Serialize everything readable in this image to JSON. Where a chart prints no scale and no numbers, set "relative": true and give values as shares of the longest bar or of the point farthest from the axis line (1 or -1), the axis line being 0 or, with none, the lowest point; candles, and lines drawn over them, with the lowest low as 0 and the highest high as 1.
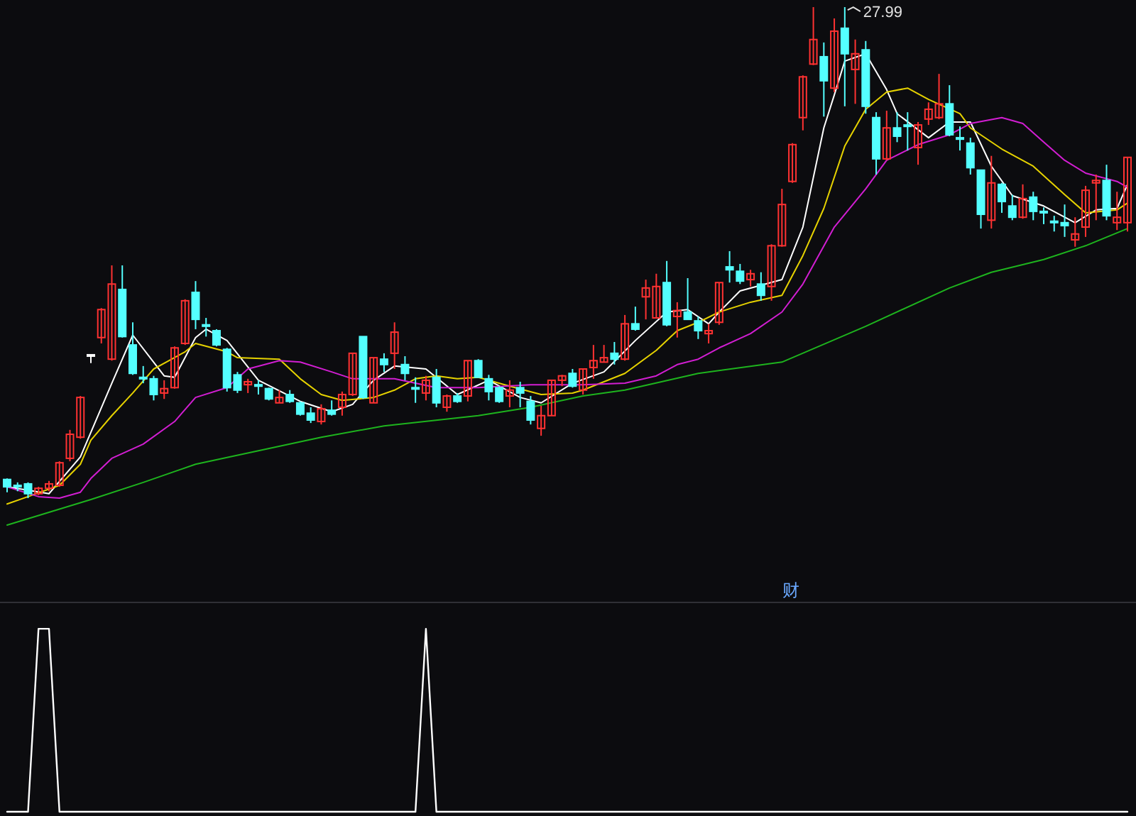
{
  "chart_data": [
    {
      "type": "candlestick",
      "relative": true,
      "categories": [
        null,
        null,
        null,
        null,
        null,
        null,
        null,
        null,
        null,
        null,
        null,
        null,
        null,
        null,
        null,
        null,
        null,
        null,
        null,
        null,
        null,
        null,
        null,
        null,
        null,
        null,
        null,
        null,
        null,
        null,
        null,
        null,
        null,
        null,
        null,
        null,
        null,
        null,
        null,
        null,
        null,
        null,
        null,
        null,
        null,
        null,
        null,
        null,
        null,
        null,
        null,
        null,
        null,
        null,
        null,
        null,
        null,
        null,
        null,
        null,
        null,
        null,
        null,
        null,
        null,
        null,
        null,
        null,
        null,
        null,
        null,
        null,
        null,
        null,
        null,
        null,
        null,
        null,
        null,
        null,
        null,
        null,
        null,
        null,
        null,
        null,
        null,
        null,
        null,
        null,
        null,
        null,
        null,
        null,
        null,
        null,
        null,
        null,
        null,
        null,
        null,
        null,
        null,
        null,
        null,
        null,
        null,
        null
      ],
      "ohlc": [
        [
          0.038,
          0.04,
          0.012,
          0.023
        ],
        [
          0.026,
          0.032,
          0.014,
          0.023
        ],
        [
          0.029,
          0.032,
          0,
          0.009
        ],
        [
          0.009,
          0.023,
          0.006,
          0.02
        ],
        [
          0.02,
          0.035,
          0.014,
          0.029
        ],
        [
          0.026,
          0.075,
          0.023,
          0.072
        ],
        [
          0.081,
          0.139,
          0.075,
          0.13
        ],
        [
          0.124,
          0.208,
          0.121,
          0.205
        ],
        [
          0.292,
          0.292,
          0.275,
          0.292
        ],
        [
          0.327,
          0.387,
          0.315,
          0.384
        ],
        [
          0.283,
          0.474,
          0.28,
          0.436
        ],
        [
          0.425,
          0.474,
          0.327,
          0.329
        ],
        [
          0.312,
          0.358,
          0.251,
          0.254
        ],
        [
          0.246,
          0.269,
          0.234,
          0.243
        ],
        [
          0.243,
          0.249,
          0.199,
          0.211
        ],
        [
          0.214,
          0.24,
          0.202,
          0.223
        ],
        [
          0.225,
          0.309,
          0.223,
          0.306
        ],
        [
          0.315,
          0.405,
          0.312,
          0.402
        ],
        [
          0.419,
          0.442,
          0.344,
          0.364
        ],
        [
          0.353,
          0.367,
          0.329,
          0.35
        ],
        [
          0.341,
          0.344,
          0.309,
          0.312
        ],
        [
          0.303,
          0.306,
          0.217,
          0.225
        ],
        [
          0.251,
          0.257,
          0.214,
          0.22
        ],
        [
          0.231,
          0.243,
          0.214,
          0.237
        ],
        [
          0.231,
          0.24,
          0.211,
          0.228
        ],
        [
          0.223,
          0.225,
          0.199,
          0.202
        ],
        [
          0.194,
          0.22,
          0.194,
          0.205
        ],
        [
          0.211,
          0.22,
          0.194,
          0.197
        ],
        [
          0.194,
          0.197,
          0.168,
          0.171
        ],
        [
          0.173,
          0.185,
          0.153,
          0.159
        ],
        [
          0.156,
          0.191,
          0.15,
          0.182
        ],
        [
          0.179,
          0.199,
          0.168,
          0.171
        ],
        [
          0.185,
          0.217,
          0.168,
          0.211
        ],
        [
          0.211,
          0.295,
          0.208,
          0.295
        ],
        [
          0.329,
          0.329,
          0.202,
          0.205
        ],
        [
          0.194,
          0.286,
          0.194,
          0.286
        ],
        [
          0.283,
          0.295,
          0.257,
          0.272
        ],
        [
          0.295,
          0.358,
          0.263,
          0.338
        ],
        [
          0.272,
          0.289,
          0.24,
          0.254
        ],
        [
          0.225,
          0.246,
          0.194,
          0.223
        ],
        [
          0.214,
          0.249,
          0.199,
          0.24
        ],
        [
          0.246,
          0.263,
          0.185,
          0.194
        ],
        [
          0.185,
          0.211,
          0.176,
          0.208
        ],
        [
          0.208,
          0.214,
          0.194,
          0.197
        ],
        [
          0.208,
          0.28,
          0.197,
          0.28
        ],
        [
          0.28,
          0.283,
          0.246,
          0.246
        ],
        [
          0.243,
          0.251,
          0.199,
          0.217
        ],
        [
          0.225,
          0.228,
          0.194,
          0.197
        ],
        [
          0.208,
          0.24,
          0.185,
          0.22
        ],
        [
          0.225,
          0.237,
          0.185,
          0.214
        ],
        [
          0.197,
          0.208,
          0.15,
          0.159
        ],
        [
          0.142,
          0.188,
          0.127,
          0.168
        ],
        [
          0.168,
          0.24,
          0.168,
          0.24
        ],
        [
          0.24,
          0.251,
          0.228,
          0.249
        ],
        [
          0.254,
          0.263,
          0.225,
          0.228
        ],
        [
          0.22,
          0.263,
          0.211,
          0.263
        ],
        [
          0.266,
          0.312,
          0.243,
          0.28
        ],
        [
          0.277,
          0.312,
          0.277,
          0.286
        ],
        [
          0.295,
          0.318,
          0.272,
          0.283
        ],
        [
          0.283,
          0.373,
          0.28,
          0.355
        ],
        [
          0.355,
          0.39,
          0.341,
          0.344
        ],
        [
          0.41,
          0.445,
          0.364,
          0.428
        ],
        [
          0.367,
          0.457,
          0.367,
          0.431
        ],
        [
          0.439,
          0.483,
          0.35,
          0.353
        ],
        [
          0.37,
          0.399,
          0.327,
          0.382
        ],
        [
          0.379,
          0.448,
          0.364,
          0.364
        ],
        [
          0.361,
          0.37,
          0.324,
          0.341
        ],
        [
          0.335,
          0.355,
          0.315,
          0.341
        ],
        [
          0.358,
          0.439,
          0.353,
          0.439
        ],
        [
          0.471,
          0.503,
          0.439,
          0.465
        ],
        [
          0.462,
          0.477,
          0.436,
          0.442
        ],
        [
          0.445,
          0.465,
          0.431,
          0.457
        ],
        [
          0.436,
          0.46,
          0.402,
          0.413
        ],
        [
          0.431,
          0.517,
          0.402,
          0.514
        ],
        [
          0.514,
          0.63,
          0.512,
          0.598
        ],
        [
          0.645,
          0.723,
          0.642,
          0.72
        ],
        [
          0.775,
          0.861,
          0.749,
          0.858
        ],
        [
          0.884,
          1.0,
          0.882,
          0.934
        ],
        [
          0.899,
          0.928,
          0.777,
          0.85
        ],
        [
          0.835,
          0.977,
          0.827,
          0.951
        ],
        [
          0.957,
          1.0,
          0.798,
          0.905
        ],
        [
          0.873,
          0.934,
          0.803,
          0.905
        ],
        [
          0.913,
          0.931,
          0.783,
          0.798
        ],
        [
          0.775,
          0.786,
          0.659,
          0.691
        ],
        [
          0.691,
          0.789,
          0.688,
          0.754
        ],
        [
          0.754,
          0.786,
          0.725,
          0.737
        ],
        [
          0.76,
          0.786,
          0.708,
          0.757
        ],
        [
          0.714,
          0.766,
          0.679,
          0.76
        ],
        [
          0.772,
          0.806,
          0.76,
          0.792
        ],
        [
          0.775,
          0.864,
          0.772,
          0.803
        ],
        [
          0.803,
          0.841,
          0.737,
          0.74
        ],
        [
          0.734,
          0.757,
          0.708,
          0.731
        ],
        [
          0.723,
          0.734,
          0.659,
          0.673
        ],
        [
          0.668,
          0.668,
          0.549,
          0.578
        ],
        [
          0.566,
          0.697,
          0.549,
          0.642
        ],
        [
          0.639,
          0.642,
          0.581,
          0.604
        ],
        [
          0.595,
          0.618,
          0.566,
          0.572
        ],
        [
          0.572,
          0.639,
          0.569,
          0.61
        ],
        [
          0.613,
          0.624,
          0.566,
          0.584
        ],
        [
          0.584,
          0.592,
          0.558,
          0.581
        ],
        [
          0.564,
          0.575,
          0.543,
          0.561
        ],
        [
          0.561,
          0.598,
          0.532,
          0.555
        ],
        [
          0.526,
          0.572,
          0.512,
          0.538
        ],
        [
          0.552,
          0.636,
          0.532,
          0.627
        ],
        [
          0.642,
          0.659,
          0.566,
          0.647
        ],
        [
          0.647,
          0.679,
          0.566,
          0.575
        ],
        [
          0.561,
          0.624,
          0.546,
          0.572
        ],
        [
          0.561,
          0.694,
          0.543,
          0.694
        ]
      ],
      "colors": [
        "#54ffff",
        "#54ffff",
        "#54ffff",
        "#ff3232",
        "#ff3232",
        "#ff3232",
        "#ff3232",
        "#ff3232",
        "#ffffff",
        "#ff3232",
        "#ff3232",
        "#54ffff",
        "#54ffff",
        "#54ffff",
        "#54ffff",
        "#ff3232",
        "#ff3232",
        "#ff3232",
        "#54ffff",
        "#54ffff",
        "#54ffff",
        "#54ffff",
        "#54ffff",
        "#ff3232",
        "#54ffff",
        "#54ffff",
        "#ff3232",
        "#54ffff",
        "#54ffff",
        "#54ffff",
        "#ff3232",
        "#54ffff",
        "#ff3232",
        "#ff3232",
        "#54ffff",
        "#ff3232",
        "#54ffff",
        "#ff3232",
        "#54ffff",
        "#54ffff",
        "#ff3232",
        "#54ffff",
        "#ff3232",
        "#54ffff",
        "#ff3232",
        "#54ffff",
        "#54ffff",
        "#54ffff",
        "#ff3232",
        "#54ffff",
        "#54ffff",
        "#ff3232",
        "#ff3232",
        "#ff3232",
        "#54ffff",
        "#ff3232",
        "#ff3232",
        "#ff3232",
        "#54ffff",
        "#ff3232",
        "#54ffff",
        "#ff3232",
        "#ff3232",
        "#54ffff",
        "#ff3232",
        "#54ffff",
        "#54ffff",
        "#ff3232",
        "#ff3232",
        "#54ffff",
        "#54ffff",
        "#ff3232",
        "#54ffff",
        "#ff3232",
        "#ff3232",
        "#ff3232",
        "#ff3232",
        "#ff3232",
        "#54ffff",
        "#ff3232",
        "#54ffff",
        "#ff3232",
        "#54ffff",
        "#54ffff",
        "#ff3232",
        "#54ffff",
        "#54ffff",
        "#ff3232",
        "#ff3232",
        "#ff3232",
        "#54ffff",
        "#54ffff",
        "#54ffff",
        "#54ffff",
        "#ff3232",
        "#54ffff",
        "#54ffff",
        "#ff3232",
        "#54ffff",
        "#54ffff",
        "#54ffff",
        "#54ffff",
        "#ff3232",
        "#ff3232",
        "#ff3232",
        "#54ffff",
        "#ff3232",
        "#ff3232"
      ],
      "series": [
        {
          "type": "line",
          "color": "#ffffff",
          "values": [
            0.023,
            null,
            null,
            null,
            0.009,
            null,
            null,
            0.084,
            null,
            null,
            0.234,
            null,
            0.332,
            null,
            null,
            0.249,
            0.246,
            null,
            0.327,
            0.344,
            null,
            0.321,
            null,
            null,
            0.24,
            null,
            null,
            null,
            0.197,
            null,
            null,
            0.176,
            null,
            0.191,
            null,
            0.24,
            null,
            0.269,
            null,
            null,
            0.263,
            null,
            null,
            0.211,
            null,
            null,
            0.24,
            null,
            null,
            0.205,
            null,
            0.194,
            null,
            null,
            0.234,
            null,
            null,
            0.257,
            null,
            null,
            0.321,
            null,
            null,
            0.379,
            null,
            0.384,
            null,
            0.355,
            0.379,
            null,
            0.422,
            null,
            null,
            null,
            0.445,
            null,
            0.552,
            null,
            0.754,
            0.821,
            0.89,
            null,
            0.905,
            null,
            0.832,
            0.783,
            null,
            null,
            0.734,
            null,
            0.766,
            null,
            0.766,
            null,
            0.676,
            null,
            0.616,
            null,
            null,
            0.595,
            null,
            null,
            0.561,
            null,
            0.587,
            null,
            0.59,
            0.639
          ]
        },
        {
          "type": "line",
          "color": "#e6d200",
          "values": [
            -0.012,
            null,
            0.003,
            null,
            null,
            0.026,
            null,
            0.069,
            0.118,
            null,
            0.168,
            null,
            0.214,
            null,
            0.263,
            null,
            null,
            0.298,
            0.315,
            null,
            null,
            0.298,
            0.286,
            null,
            null,
            null,
            0.283,
            null,
            0.243,
            null,
            0.211,
            null,
            0.199,
            null,
            null,
            0.205,
            null,
            0.22,
            null,
            0.243,
            null,
            0.249,
            null,
            0.243,
            null,
            0.246,
            null,
            null,
            0.228,
            null,
            null,
            0.211,
            null,
            null,
            0.214,
            0.22,
            null,
            null,
            null,
            0.254,
            null,
            null,
            0.301,
            null,
            0.341,
            null,
            0.358,
            null,
            0.379,
            null,
            null,
            0.399,
            null,
            null,
            0.413,
            null,
            0.494,
            null,
            0.59,
            null,
            0.717,
            null,
            0.792,
            null,
            0.827,
            null,
            0.835,
            null,
            0.812,
            null,
            null,
            0.783,
            0.754,
            null,
            null,
            0.711,
            null,
            null,
            0.676,
            null,
            null,
            0.618,
            null,
            0.581,
            null,
            null,
            0.587,
            0.601
          ]
        },
        {
          "type": "line",
          "color": "#d21ed2",
          "values": [
            0.023,
            null,
            null,
            0.003,
            null,
            0,
            null,
            0.012,
            0.04,
            null,
            0.081,
            null,
            null,
            0.11,
            null,
            null,
            0.156,
            null,
            0.205,
            null,
            null,
            0.225,
            null,
            0.263,
            null,
            null,
            0.28,
            null,
            0.277,
            null,
            null,
            0.257,
            null,
            0.243,
            null,
            null,
            null,
            0.243,
            null,
            null,
            null,
            0.225,
            null,
            null,
            null,
            0.225,
            null,
            null,
            null,
            null,
            0.231,
            null,
            null,
            null,
            null,
            0.231,
            null,
            null,
            null,
            0.234,
            null,
            null,
            0.249,
            null,
            0.272,
            null,
            0.283,
            null,
            0.306,
            null,
            null,
            0.335,
            null,
            null,
            0.379,
            null,
            0.436,
            null,
            null,
            0.552,
            null,
            null,
            0.63,
            null,
            0.688,
            null,
            null,
            0.72,
            null,
            null,
            0.74,
            null,
            0.763,
            null,
            null,
            0.775,
            null,
            0.763,
            null,
            0.725,
            null,
            0.688,
            null,
            0.662,
            null,
            null,
            0.645,
            0.633
          ]
        },
        {
          "type": "line",
          "color": "#1eb41e",
          "values": [
            -0.055,
            null,
            null,
            null,
            null,
            null,
            null,
            null,
            -0.003,
            null,
            null,
            null,
            null,
            0.032,
            null,
            null,
            null,
            null,
            0.069,
            null,
            null,
            null,
            null,
            null,
            null,
            null,
            null,
            null,
            null,
            null,
            0.124,
            null,
            null,
            null,
            null,
            null,
            0.147,
            null,
            null,
            null,
            null,
            null,
            null,
            null,
            null,
            0.168,
            null,
            null,
            null,
            null,
            0.185,
            null,
            null,
            null,
            null,
            0.208,
            null,
            null,
            null,
            0.22,
            null,
            null,
            null,
            null,
            null,
            null,
            0.254,
            null,
            null,
            null,
            null,
            null,
            null,
            null,
            0.277,
            null,
            null,
            null,
            null,
            null,
            null,
            null,
            0.35,
            null,
            null,
            null,
            null,
            null,
            null,
            null,
            0.428,
            null,
            null,
            null,
            0.46,
            null,
            null,
            null,
            null,
            0.486,
            null,
            null,
            null,
            0.514,
            null,
            null,
            null,
            0.549
          ]
        }
      ],
      "annotations": [
        "27.99",
        "财"
      ]
    },
    {
      "type": "line",
      "relative": true,
      "categories": [
        null,
        null,
        null,
        null,
        null,
        null,
        null,
        null,
        null,
        null,
        null,
        null,
        null,
        null,
        null,
        null,
        null,
        null,
        null,
        null,
        null,
        null,
        null,
        null,
        null,
        null,
        null,
        null,
        null,
        null,
        null,
        null,
        null,
        null,
        null,
        null,
        null,
        null,
        null,
        null,
        null,
        null,
        null,
        null,
        null,
        null,
        null,
        null,
        null,
        null,
        null,
        null,
        null,
        null,
        null,
        null,
        null,
        null,
        null,
        null,
        null,
        null,
        null,
        null,
        null,
        null,
        null,
        null,
        null,
        null,
        null,
        null,
        null,
        null,
        null,
        null,
        null,
        null,
        null,
        null,
        null,
        null,
        null,
        null,
        null,
        null,
        null,
        null,
        null,
        null,
        null,
        null,
        null,
        null,
        null,
        null,
        null,
        null,
        null,
        null,
        null,
        null,
        null,
        null,
        null,
        null,
        null,
        null
      ],
      "series": [
        {
          "color": "#ffffff",
          "values": [
            0,
            0,
            0,
            1,
            1,
            0,
            0,
            0,
            0,
            0,
            0,
            0,
            0,
            0,
            0,
            0,
            0,
            0,
            0,
            0,
            0,
            0,
            0,
            0,
            0,
            0,
            0,
            0,
            0,
            0,
            0,
            0,
            0,
            0,
            0,
            0,
            0,
            0,
            0,
            0,
            1,
            0,
            0,
            0,
            0,
            0,
            0,
            0,
            0,
            0,
            0,
            0,
            0,
            0,
            0,
            0,
            0,
            0,
            0,
            0,
            0,
            0,
            0,
            0,
            0,
            0,
            0,
            0,
            0,
            0,
            0,
            0,
            0,
            0,
            0,
            0,
            0,
            0,
            0,
            0,
            0,
            0,
            0,
            0,
            0,
            0,
            0,
            0,
            0,
            0,
            0,
            0,
            0,
            0,
            0,
            0,
            0,
            0,
            0,
            0,
            0,
            0,
            0,
            0,
            0,
            0,
            0,
            0
          ]
        }
      ]
    }
  ]
}
